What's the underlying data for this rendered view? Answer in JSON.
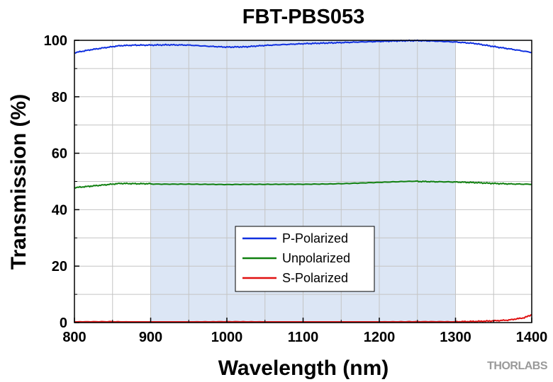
{
  "chart_data": {
    "type": "line",
    "title": "FBT-PBS053",
    "xlabel": "Wavelength (nm)",
    "ylabel": "Transmission (%)",
    "xlim": [
      800,
      1400
    ],
    "ylim": [
      0,
      100
    ],
    "x_ticks": [
      "800",
      "900",
      "1000",
      "1100",
      "1200",
      "1300",
      "1400"
    ],
    "y_ticks": [
      "0",
      "20",
      "40",
      "60",
      "80",
      "100"
    ],
    "grid": true,
    "shaded_region": {
      "x_start": 900,
      "x_end": 1300,
      "color": "#dce6f5"
    },
    "legend_position": "lower-center",
    "series": [
      {
        "name": "P-Polarized",
        "color": "#1030e0",
        "x": [
          800,
          820,
          840,
          860,
          880,
          900,
          925,
          950,
          975,
          1000,
          1025,
          1050,
          1075,
          1100,
          1125,
          1150,
          1175,
          1200,
          1225,
          1250,
          1275,
          1300,
          1325,
          1350,
          1375,
          1400
        ],
        "y": [
          95.6,
          96.6,
          97.4,
          98.1,
          98.3,
          98.3,
          98.4,
          98.3,
          97.9,
          97.6,
          97.7,
          98.2,
          98.5,
          98.8,
          99.0,
          99.2,
          99.4,
          99.6,
          99.8,
          99.9,
          99.7,
          99.4,
          98.9,
          97.8,
          96.8,
          95.7
        ]
      },
      {
        "name": "Unpolarized",
        "color": "#108010",
        "x": [
          800,
          820,
          840,
          860,
          880,
          900,
          950,
          1000,
          1050,
          1100,
          1150,
          1200,
          1250,
          1275,
          1300,
          1325,
          1350,
          1375,
          1400
        ],
        "y": [
          47.8,
          48.3,
          48.8,
          49.3,
          49.2,
          49.2,
          49.1,
          48.8,
          48.9,
          49.1,
          49.3,
          49.6,
          50.0,
          49.9,
          49.8,
          49.6,
          49.3,
          49.1,
          49.0
        ]
      },
      {
        "name": "S-Polarized",
        "color": "#e01010",
        "x": [
          800,
          850,
          900,
          950,
          1000,
          1050,
          1100,
          1150,
          1200,
          1250,
          1300,
          1325,
          1350,
          1370,
          1390,
          1400
        ],
        "y": [
          0.1,
          0.3,
          0.1,
          0.2,
          0.2,
          0.1,
          0.1,
          0.1,
          0.1,
          0.2,
          0.3,
          0.4,
          0.6,
          0.9,
          1.7,
          2.8
        ]
      }
    ],
    "watermark": "THORLABS"
  }
}
